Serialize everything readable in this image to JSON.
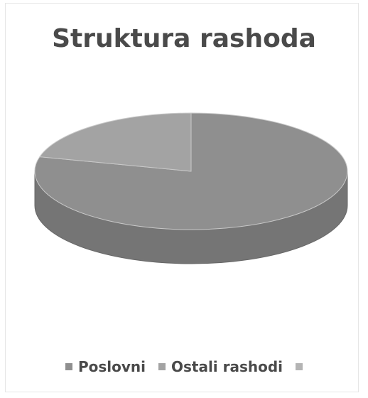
{
  "chart_data": {
    "type": "pie",
    "title": "Struktura rashoda",
    "three_d": true,
    "slices": [
      {
        "label": "Poslovni",
        "value": 79,
        "color": "#8f8f8f"
      },
      {
        "label": "Ostali rashodi",
        "value": 21,
        "color": "#a3a3a3"
      },
      {
        "label": "",
        "value": 0,
        "color": "#b4b4b4"
      }
    ],
    "legend_position": "bottom"
  }
}
